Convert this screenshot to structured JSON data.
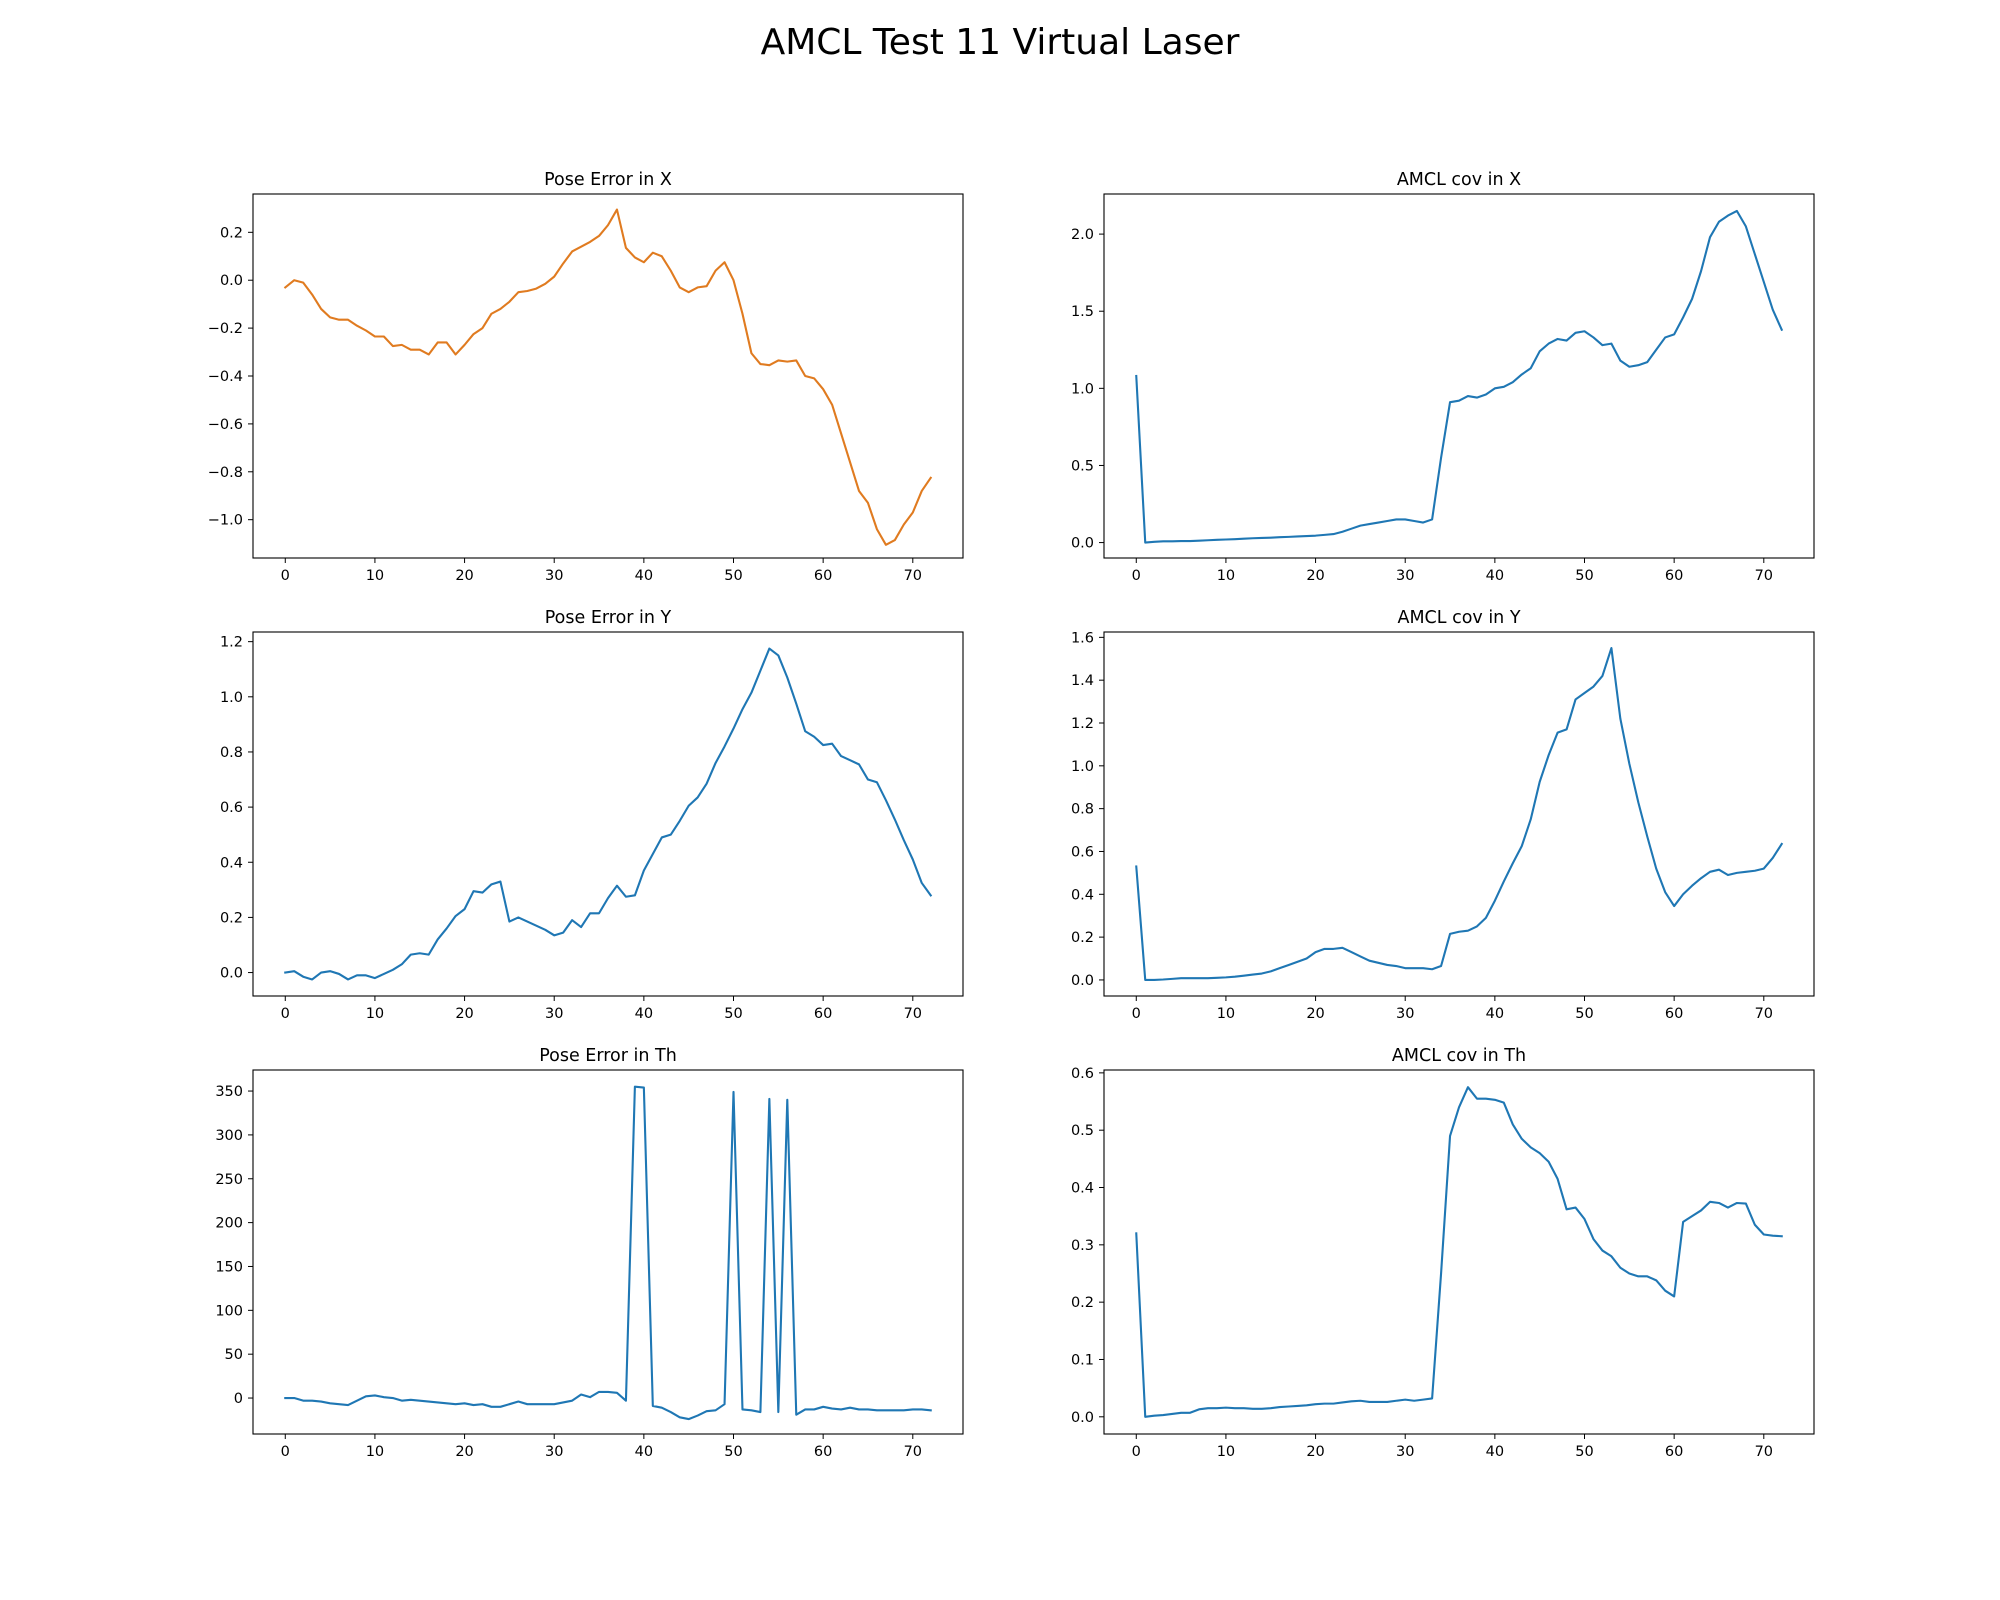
{
  "figure": {
    "title": "AMCL Test 11 Virtual Laser"
  },
  "chart_data": [
    {
      "type": "line",
      "title": "Pose Error in X",
      "xlim": [
        -3.6,
        75.6
      ],
      "ylim": [
        -1.16,
        0.36
      ],
      "xticks": [
        0,
        10,
        20,
        30,
        40,
        50,
        60,
        70
      ],
      "yticks": [
        -1.0,
        -0.8,
        -0.6,
        -0.4,
        -0.2,
        0.0,
        0.2
      ],
      "ytick_labels": [
        "−1.0",
        "−0.8",
        "−0.6",
        "−0.4",
        "−0.2",
        "0.0",
        "0.2"
      ],
      "series": [
        {
          "color": "#e07b20",
          "values": [
            -0.03,
            0.0,
            -0.01,
            -0.06,
            -0.12,
            -0.155,
            -0.165,
            -0.165,
            -0.19,
            -0.21,
            -0.235,
            -0.235,
            -0.275,
            -0.27,
            -0.29,
            -0.29,
            -0.31,
            -0.26,
            -0.26,
            -0.31,
            -0.27,
            -0.225,
            -0.2,
            -0.14,
            -0.12,
            -0.09,
            -0.05,
            -0.045,
            -0.035,
            -0.015,
            0.015,
            0.07,
            0.12,
            0.14,
            0.16,
            0.185,
            0.23,
            0.295,
            0.135,
            0.095,
            0.075,
            0.115,
            0.1,
            0.04,
            -0.03,
            -0.05,
            -0.03,
            -0.025,
            0.04,
            0.075,
            0.0,
            -0.14,
            -0.305,
            -0.35,
            -0.355,
            -0.335,
            -0.34,
            -0.335,
            -0.4,
            -0.41,
            -0.455,
            -0.52,
            -0.64,
            -0.76,
            -0.88,
            -0.93,
            -1.04,
            -1.105,
            -1.085,
            -1.02,
            -0.97,
            -0.88,
            -0.825
          ]
        }
      ]
    },
    {
      "type": "line",
      "title": "AMCL cov in X",
      "xlim": [
        -3.6,
        75.6
      ],
      "ylim": [
        -0.1,
        2.26
      ],
      "xticks": [
        0,
        10,
        20,
        30,
        40,
        50,
        60,
        70
      ],
      "yticks": [
        0.0,
        0.5,
        1.0,
        1.5,
        2.0
      ],
      "ytick_labels": [
        "0.0",
        "0.5",
        "1.0",
        "1.5",
        "2.0"
      ],
      "series": [
        {
          "color": "#1f77b4",
          "values": [
            1.08,
            0.0,
            0.005,
            0.008,
            0.008,
            0.01,
            0.01,
            0.012,
            0.015,
            0.018,
            0.02,
            0.022,
            0.025,
            0.028,
            0.03,
            0.032,
            0.035,
            0.037,
            0.04,
            0.042,
            0.045,
            0.05,
            0.055,
            0.07,
            0.09,
            0.11,
            0.12,
            0.13,
            0.14,
            0.15,
            0.15,
            0.14,
            0.13,
            0.15,
            0.55,
            0.91,
            0.92,
            0.95,
            0.94,
            0.96,
            1.0,
            1.01,
            1.04,
            1.09,
            1.13,
            1.24,
            1.29,
            1.32,
            1.31,
            1.36,
            1.37,
            1.33,
            1.28,
            1.29,
            1.18,
            1.14,
            1.15,
            1.17,
            1.25,
            1.33,
            1.35,
            1.46,
            1.58,
            1.76,
            1.98,
            2.08,
            2.12,
            2.15,
            2.05,
            1.87,
            1.69,
            1.51,
            1.38
          ]
        }
      ]
    },
    {
      "type": "line",
      "title": "Pose Error in Y",
      "xlim": [
        -3.6,
        75.6
      ],
      "ylim": [
        -0.085,
        1.235
      ],
      "xticks": [
        0,
        10,
        20,
        30,
        40,
        50,
        60,
        70
      ],
      "yticks": [
        0.0,
        0.2,
        0.4,
        0.6,
        0.8,
        1.0,
        1.2
      ],
      "ytick_labels": [
        "0.0",
        "0.2",
        "0.4",
        "0.6",
        "0.8",
        "1.0",
        "1.2"
      ],
      "series": [
        {
          "color": "#1f77b4",
          "values": [
            0.0,
            0.005,
            -0.015,
            -0.025,
            0.0,
            0.005,
            -0.005,
            -0.025,
            -0.01,
            -0.01,
            -0.02,
            -0.005,
            0.01,
            0.03,
            0.065,
            0.07,
            0.065,
            0.12,
            0.16,
            0.205,
            0.23,
            0.295,
            0.29,
            0.32,
            0.33,
            0.185,
            0.2,
            0.185,
            0.17,
            0.155,
            0.135,
            0.145,
            0.19,
            0.165,
            0.215,
            0.215,
            0.27,
            0.315,
            0.275,
            0.28,
            0.37,
            0.43,
            0.49,
            0.5,
            0.55,
            0.605,
            0.635,
            0.685,
            0.76,
            0.82,
            0.885,
            0.955,
            1.015,
            1.095,
            1.175,
            1.15,
            1.07,
            0.975,
            0.875,
            0.855,
            0.825,
            0.83,
            0.785,
            0.77,
            0.755,
            0.7,
            0.69,
            0.625,
            0.555,
            0.48,
            0.41,
            0.325,
            0.28
          ]
        }
      ]
    },
    {
      "type": "line",
      "title": "AMCL cov in Y",
      "xlim": [
        -3.6,
        75.6
      ],
      "ylim": [
        -0.075,
        1.625
      ],
      "xticks": [
        0,
        10,
        20,
        30,
        40,
        50,
        60,
        70
      ],
      "yticks": [
        0.0,
        0.2,
        0.4,
        0.6,
        0.8,
        1.0,
        1.2,
        1.4,
        1.6
      ],
      "ytick_labels": [
        "0.0",
        "0.2",
        "0.4",
        "0.6",
        "0.8",
        "1.0",
        "1.2",
        "1.4",
        "1.6"
      ],
      "series": [
        {
          "color": "#1f77b4",
          "values": [
            0.53,
            0.0,
            0.0,
            0.002,
            0.005,
            0.008,
            0.008,
            0.008,
            0.008,
            0.01,
            0.012,
            0.015,
            0.02,
            0.025,
            0.03,
            0.04,
            0.055,
            0.07,
            0.085,
            0.1,
            0.13,
            0.145,
            0.145,
            0.15,
            0.13,
            0.11,
            0.09,
            0.08,
            0.07,
            0.065,
            0.055,
            0.055,
            0.055,
            0.05,
            0.065,
            0.215,
            0.225,
            0.23,
            0.25,
            0.29,
            0.37,
            0.46,
            0.545,
            0.625,
            0.75,
            0.925,
            1.05,
            1.155,
            1.17,
            1.31,
            1.34,
            1.37,
            1.42,
            1.55,
            1.22,
            1.01,
            0.83,
            0.67,
            0.52,
            0.41,
            0.345,
            0.4,
            0.44,
            0.475,
            0.505,
            0.515,
            0.49,
            0.5,
            0.505,
            0.51,
            0.52,
            0.57,
            0.635
          ]
        }
      ]
    },
    {
      "type": "line",
      "title": "Pose Error in Th",
      "xlim": [
        -3.6,
        75.6
      ],
      "ylim": [
        -41,
        374
      ],
      "xticks": [
        0,
        10,
        20,
        30,
        40,
        50,
        60,
        70
      ],
      "yticks": [
        0,
        50,
        100,
        150,
        200,
        250,
        300,
        350
      ],
      "ytick_labels": [
        "0",
        "50",
        "100",
        "150",
        "200",
        "250",
        "300",
        "350"
      ],
      "series": [
        {
          "color": "#1f77b4",
          "values": [
            0,
            0,
            -3,
            -3,
            -4,
            -6,
            -7,
            -8,
            -3,
            2,
            3,
            1,
            0,
            -3,
            -2,
            -3,
            -4,
            -5,
            -6,
            -7,
            -6,
            -8,
            -7,
            -10,
            -10,
            -7,
            -4,
            -7,
            -7,
            -7,
            -7,
            -5,
            -3,
            4,
            1,
            7,
            7,
            6,
            -3,
            355,
            354,
            -9,
            -11,
            -16,
            -22,
            -24,
            -20,
            -15,
            -14,
            -7,
            349,
            -13,
            -14,
            -16,
            341,
            -16,
            340,
            -19,
            -13,
            -13,
            -10,
            -12,
            -13,
            -11,
            -13,
            -13,
            -14,
            -14,
            -14,
            -14,
            -13,
            -13,
            -14
          ]
        }
      ]
    },
    {
      "type": "line",
      "title": "AMCL cov in Th",
      "xlim": [
        -3.6,
        75.6
      ],
      "ylim": [
        -0.03,
        0.605
      ],
      "xticks": [
        0,
        10,
        20,
        30,
        40,
        50,
        60,
        70
      ],
      "yticks": [
        0.0,
        0.1,
        0.2,
        0.3,
        0.4,
        0.5,
        0.6
      ],
      "ytick_labels": [
        "0.0",
        "0.1",
        "0.2",
        "0.3",
        "0.4",
        "0.5",
        "0.6"
      ],
      "series": [
        {
          "color": "#1f77b4",
          "values": [
            0.32,
            0.0,
            0.002,
            0.003,
            0.005,
            0.007,
            0.007,
            0.013,
            0.015,
            0.015,
            0.016,
            0.015,
            0.015,
            0.014,
            0.014,
            0.015,
            0.017,
            0.018,
            0.019,
            0.02,
            0.022,
            0.023,
            0.023,
            0.025,
            0.027,
            0.028,
            0.026,
            0.026,
            0.026,
            0.028,
            0.03,
            0.028,
            0.03,
            0.032,
            0.25,
            0.49,
            0.54,
            0.575,
            0.555,
            0.555,
            0.553,
            0.548,
            0.51,
            0.485,
            0.47,
            0.46,
            0.445,
            0.415,
            0.362,
            0.365,
            0.345,
            0.31,
            0.29,
            0.28,
            0.26,
            0.25,
            0.245,
            0.245,
            0.238,
            0.22,
            0.21,
            0.34,
            0.35,
            0.36,
            0.375,
            0.373,
            0.365,
            0.373,
            0.372,
            0.335,
            0.318,
            0.316,
            0.315
          ]
        }
      ]
    }
  ]
}
